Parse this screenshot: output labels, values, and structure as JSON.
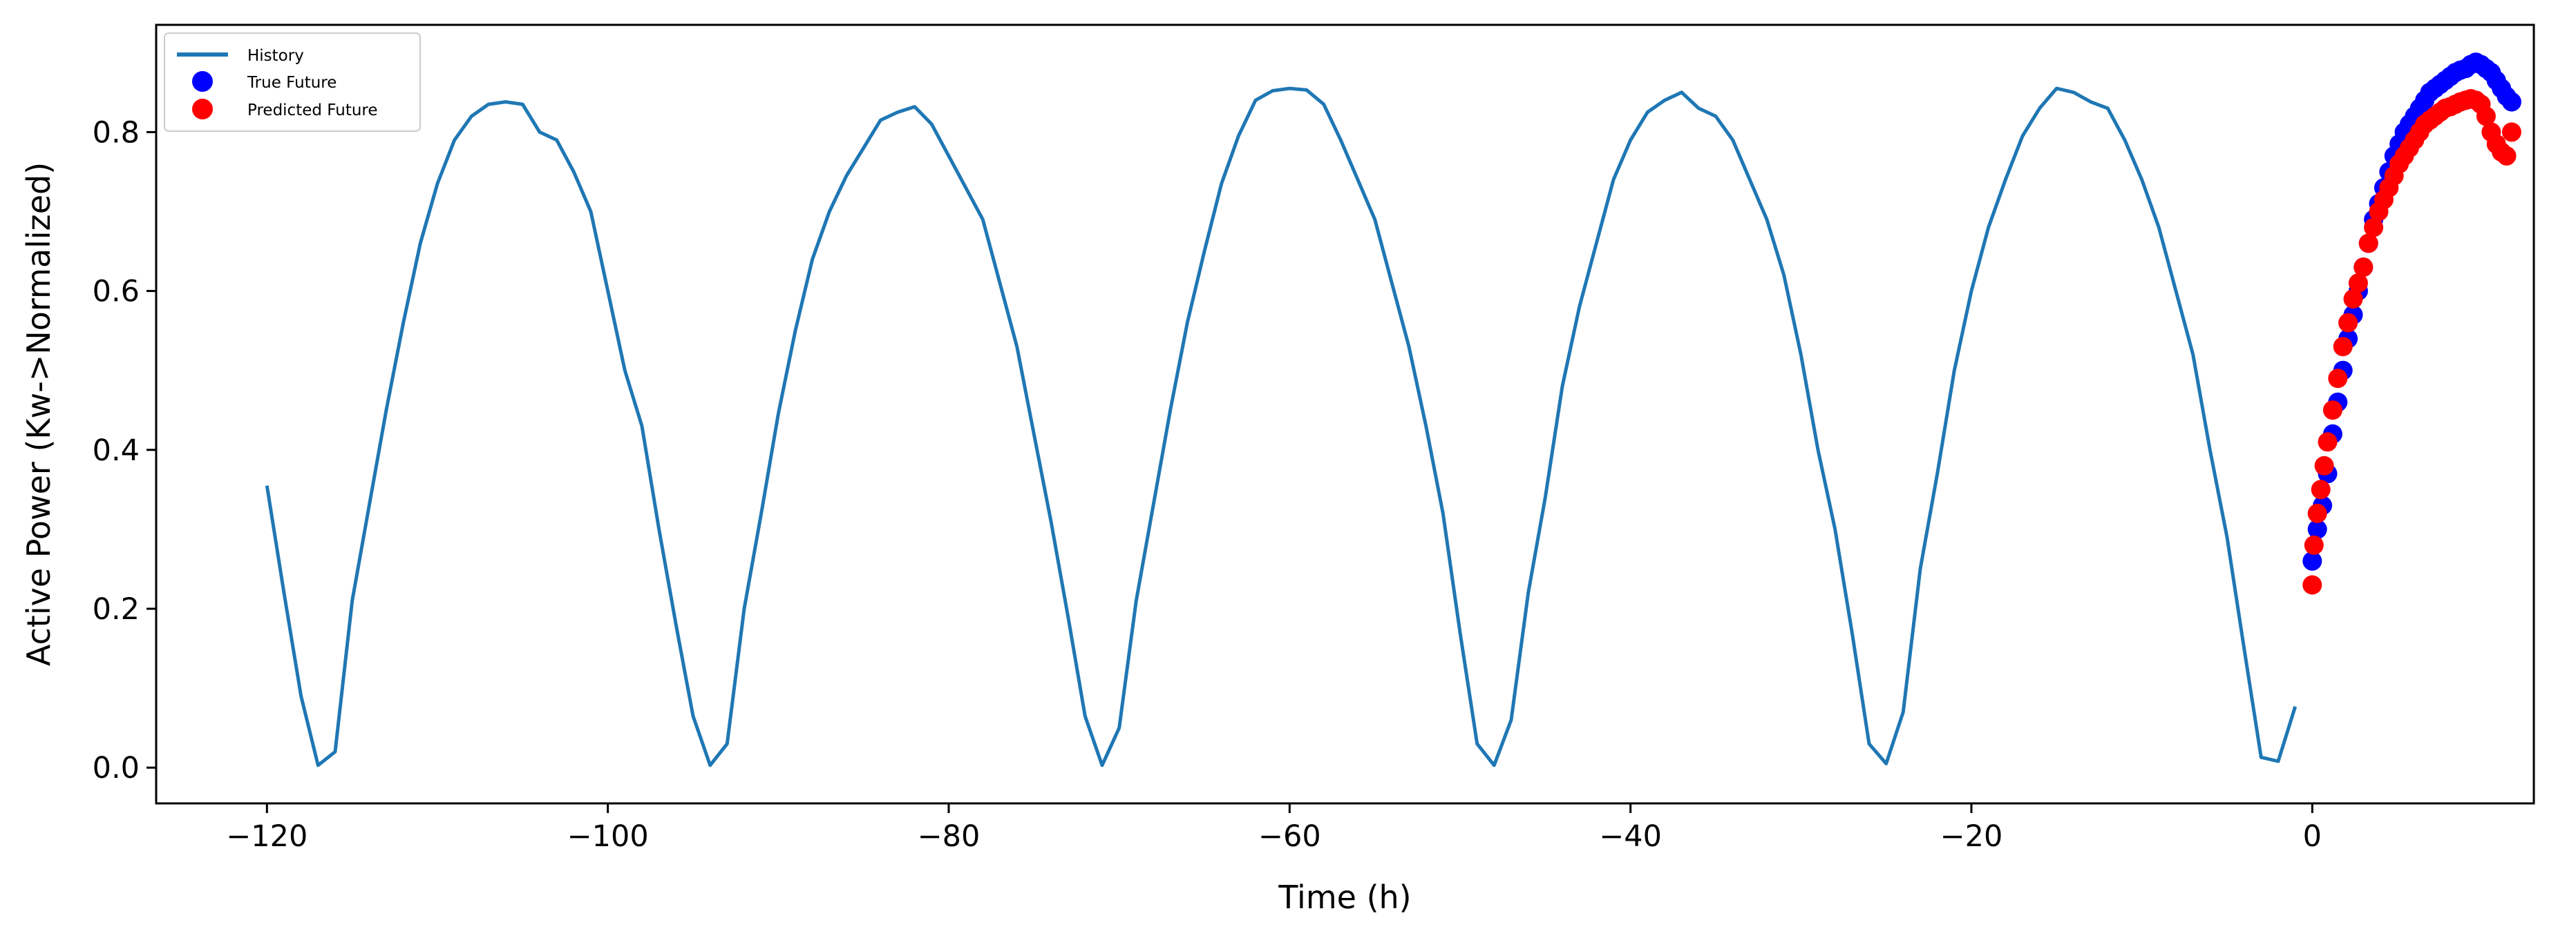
{
  "chart_data": {
    "type": "line",
    "title": "",
    "xlabel": "Time (h)",
    "ylabel": "Active Power (Kw->Normalized)",
    "xlim": [
      -126.5,
      13
    ],
    "ylim": [
      -0.045,
      0.935
    ],
    "xticks": [
      -120,
      -100,
      -80,
      -60,
      -40,
      -20,
      0
    ],
    "yticks": [
      0.0,
      0.2,
      0.4,
      0.6,
      0.8
    ],
    "xtick_labels": [
      "−120",
      "−100",
      "−80",
      "−60",
      "−40",
      "−20",
      "0"
    ],
    "ytick_labels": [
      "0.0",
      "0.2",
      "0.4",
      "0.6",
      "0.8"
    ],
    "grid": false,
    "legend_position": "top-left",
    "series": [
      {
        "name": "History",
        "kind": "line",
        "color": "#1f77b4",
        "points": [
          [
            -120,
            0.355
          ],
          [
            -119,
            0.22
          ],
          [
            -118,
            0.09
          ],
          [
            -117,
            0.003
          ],
          [
            -116,
            0.02
          ],
          [
            -115,
            0.21
          ],
          [
            -114,
            0.33
          ],
          [
            -113,
            0.45
          ],
          [
            -112,
            0.56
          ],
          [
            -111,
            0.66
          ],
          [
            -110,
            0.735
          ],
          [
            -109,
            0.79
          ],
          [
            -108,
            0.82
          ],
          [
            -107,
            0.835
          ],
          [
            -106,
            0.838
          ],
          [
            -105,
            0.835
          ],
          [
            -104,
            0.8
          ],
          [
            -103,
            0.79
          ],
          [
            -102,
            0.75
          ],
          [
            -101,
            0.7
          ],
          [
            -100,
            0.6
          ],
          [
            -99,
            0.5
          ],
          [
            -98,
            0.43
          ],
          [
            -97,
            0.3
          ],
          [
            -96,
            0.18
          ],
          [
            -95,
            0.065
          ],
          [
            -94,
            0.003
          ],
          [
            -93,
            0.03
          ],
          [
            -92,
            0.2
          ],
          [
            -91,
            0.32
          ],
          [
            -90,
            0.445
          ],
          [
            -89,
            0.55
          ],
          [
            -88,
            0.64
          ],
          [
            -87,
            0.7
          ],
          [
            -86,
            0.745
          ],
          [
            -85,
            0.78
          ],
          [
            -84,
            0.815
          ],
          [
            -83,
            0.825
          ],
          [
            -82,
            0.832
          ],
          [
            -81,
            0.81
          ],
          [
            -80,
            0.77
          ],
          [
            -79,
            0.73
          ],
          [
            -78,
            0.69
          ],
          [
            -77,
            0.61
          ],
          [
            -76,
            0.53
          ],
          [
            -75,
            0.42
          ],
          [
            -74,
            0.31
          ],
          [
            -73,
            0.19
          ],
          [
            -72,
            0.065
          ],
          [
            -71,
            0.003
          ],
          [
            -70,
            0.05
          ],
          [
            -69,
            0.21
          ],
          [
            -68,
            0.33
          ],
          [
            -67,
            0.45
          ],
          [
            -66,
            0.56
          ],
          [
            -65,
            0.65
          ],
          [
            -64,
            0.735
          ],
          [
            -63,
            0.795
          ],
          [
            -62,
            0.84
          ],
          [
            -61,
            0.852
          ],
          [
            -60,
            0.855
          ],
          [
            -59,
            0.853
          ],
          [
            -58,
            0.835
          ],
          [
            -57,
            0.79
          ],
          [
            -56,
            0.74
          ],
          [
            -55,
            0.69
          ],
          [
            -54,
            0.61
          ],
          [
            -53,
            0.53
          ],
          [
            -52,
            0.43
          ],
          [
            -51,
            0.32
          ],
          [
            -50,
            0.17
          ],
          [
            -49,
            0.03
          ],
          [
            -48,
            0.003
          ],
          [
            -47,
            0.06
          ],
          [
            -46,
            0.22
          ],
          [
            -45,
            0.34
          ],
          [
            -44,
            0.48
          ],
          [
            -43,
            0.58
          ],
          [
            -42,
            0.66
          ],
          [
            -41,
            0.74
          ],
          [
            -40,
            0.79
          ],
          [
            -39,
            0.825
          ],
          [
            -38,
            0.84
          ],
          [
            -37,
            0.85
          ],
          [
            -36,
            0.83
          ],
          [
            -35,
            0.82
          ],
          [
            -34,
            0.79
          ],
          [
            -33,
            0.74
          ],
          [
            -32,
            0.69
          ],
          [
            -31,
            0.62
          ],
          [
            -30,
            0.52
          ],
          [
            -29,
            0.4
          ],
          [
            -28,
            0.3
          ],
          [
            -27,
            0.17
          ],
          [
            -26,
            0.03
          ],
          [
            -25,
            0.005
          ],
          [
            -24,
            0.07
          ],
          [
            -23,
            0.25
          ],
          [
            -22,
            0.37
          ],
          [
            -21,
            0.5
          ],
          [
            -20,
            0.6
          ],
          [
            -19,
            0.68
          ],
          [
            -18,
            0.74
          ],
          [
            -17,
            0.795
          ],
          [
            -16,
            0.83
          ],
          [
            -15,
            0.855
          ],
          [
            -14,
            0.85
          ],
          [
            -13,
            0.838
          ],
          [
            -12,
            0.83
          ],
          [
            -11,
            0.79
          ],
          [
            -10,
            0.74
          ],
          [
            -9,
            0.68
          ],
          [
            -8,
            0.6
          ],
          [
            -7,
            0.52
          ],
          [
            -6,
            0.4
          ],
          [
            -5,
            0.29
          ],
          [
            -4,
            0.15
          ],
          [
            -3,
            0.013
          ],
          [
            -2,
            0.008
          ],
          [
            -1,
            0.077
          ]
        ]
      },
      {
        "name": "True Future",
        "kind": "scatter",
        "color": "#0000ff",
        "points": [
          [
            0.0,
            0.26
          ],
          [
            0.3,
            0.3
          ],
          [
            0.6,
            0.33
          ],
          [
            0.9,
            0.37
          ],
          [
            1.2,
            0.42
          ],
          [
            1.5,
            0.46
          ],
          [
            1.8,
            0.5
          ],
          [
            2.1,
            0.54
          ],
          [
            2.4,
            0.57
          ],
          [
            2.7,
            0.6
          ],
          [
            3.0,
            0.63
          ],
          [
            3.3,
            0.66
          ],
          [
            3.6,
            0.69
          ],
          [
            3.9,
            0.71
          ],
          [
            4.2,
            0.73
          ],
          [
            4.5,
            0.75
          ],
          [
            4.8,
            0.77
          ],
          [
            5.1,
            0.785
          ],
          [
            5.4,
            0.8
          ],
          [
            5.7,
            0.81
          ],
          [
            6.0,
            0.82
          ],
          [
            6.3,
            0.83
          ],
          [
            6.6,
            0.84
          ],
          [
            6.9,
            0.85
          ],
          [
            7.2,
            0.855
          ],
          [
            7.5,
            0.86
          ],
          [
            7.8,
            0.865
          ],
          [
            8.1,
            0.87
          ],
          [
            8.4,
            0.875
          ],
          [
            8.7,
            0.878
          ],
          [
            9.0,
            0.88
          ],
          [
            9.3,
            0.885
          ],
          [
            9.6,
            0.888
          ],
          [
            9.9,
            0.885
          ],
          [
            10.2,
            0.88
          ],
          [
            10.5,
            0.875
          ],
          [
            10.8,
            0.865
          ],
          [
            11.1,
            0.855
          ],
          [
            11.4,
            0.845
          ],
          [
            11.7,
            0.838
          ]
        ]
      },
      {
        "name": "Predicted Future",
        "kind": "scatter",
        "color": "#ff0000",
        "points": [
          [
            0.0,
            0.23
          ],
          [
            0.1,
            0.28
          ],
          [
            0.3,
            0.32
          ],
          [
            0.5,
            0.35
          ],
          [
            0.7,
            0.38
          ],
          [
            0.9,
            0.41
          ],
          [
            1.2,
            0.45
          ],
          [
            1.5,
            0.49
          ],
          [
            1.8,
            0.53
          ],
          [
            2.1,
            0.56
          ],
          [
            2.4,
            0.59
          ],
          [
            2.7,
            0.61
          ],
          [
            3.0,
            0.63
          ],
          [
            3.3,
            0.66
          ],
          [
            3.6,
            0.68
          ],
          [
            3.9,
            0.7
          ],
          [
            4.2,
            0.715
          ],
          [
            4.5,
            0.73
          ],
          [
            4.8,
            0.745
          ],
          [
            5.1,
            0.76
          ],
          [
            5.4,
            0.77
          ],
          [
            5.7,
            0.78
          ],
          [
            6.0,
            0.79
          ],
          [
            6.3,
            0.8
          ],
          [
            6.6,
            0.81
          ],
          [
            6.9,
            0.815
          ],
          [
            7.2,
            0.82
          ],
          [
            7.5,
            0.825
          ],
          [
            7.8,
            0.83
          ],
          [
            8.1,
            0.832
          ],
          [
            8.4,
            0.835
          ],
          [
            8.7,
            0.838
          ],
          [
            9.0,
            0.84
          ],
          [
            9.3,
            0.842
          ],
          [
            9.6,
            0.84
          ],
          [
            9.9,
            0.835
          ],
          [
            10.2,
            0.82
          ],
          [
            10.5,
            0.8
          ],
          [
            10.8,
            0.785
          ],
          [
            11.1,
            0.775
          ],
          [
            11.4,
            0.77
          ],
          [
            11.7,
            0.8
          ]
        ]
      }
    ]
  },
  "legend": {
    "items": [
      {
        "label": "History"
      },
      {
        "label": "True Future"
      },
      {
        "label": "Predicted Future"
      }
    ]
  }
}
